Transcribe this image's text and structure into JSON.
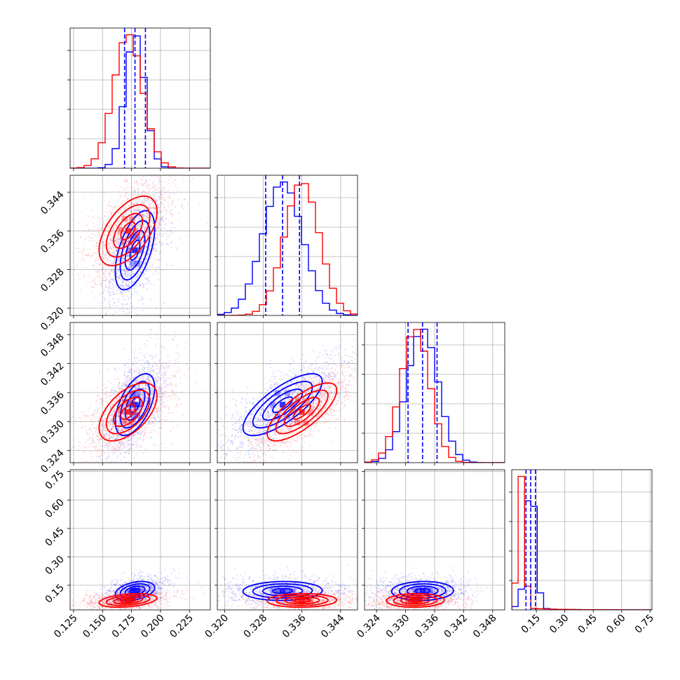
{
  "chart_data": {
    "type": "corner",
    "grid": true,
    "series": [
      {
        "name": "",
        "color": "#0000ff",
        "mean": [
          0.178,
          0.332,
          0.3335,
          0.12
        ],
        "std": [
          0.0085,
          0.0041,
          0.0032,
          0.025
        ]
      },
      {
        "name": "",
        "color": "#ff0000",
        "mean": [
          0.172,
          0.336,
          0.332,
          0.07
        ],
        "std": [
          0.0125,
          0.0036,
          0.003,
          0.018
        ]
      }
    ],
    "quantile_lines": {
      "color": "#0000ff",
      "values": [
        [
          0.169,
          0.178,
          0.187
        ],
        [
          0.3285,
          0.332,
          0.3355
        ],
        [
          0.3305,
          0.3335,
          0.3365
        ],
        [
          0.095,
          0.12,
          0.145
        ]
      ]
    },
    "parameters": [
      {
        "range": [
          0.122,
          0.243
        ],
        "ticks": [
          0.125,
          0.15,
          0.175,
          0.2,
          0.225
        ],
        "tick_labels": [
          "0.125",
          "0.150",
          "0.175",
          "0.200",
          "0.225"
        ]
      },
      {
        "range": [
          0.3185,
          0.3475
        ],
        "ticks": [
          0.32,
          0.328,
          0.336,
          0.344
        ],
        "tick_labels": [
          "0.320",
          "0.328",
          "0.336",
          "0.344"
        ]
      },
      {
        "range": [
          0.3215,
          0.3505
        ],
        "ticks": [
          0.324,
          0.33,
          0.336,
          0.342,
          0.348
        ],
        "tick_labels": [
          "0.324",
          "0.330",
          "0.336",
          "0.342",
          "0.348"
        ]
      },
      {
        "range": [
          0.02,
          0.76
        ],
        "ticks": [
          0.15,
          0.3,
          0.45,
          0.6,
          0.75
        ],
        "tick_labels": [
          "0.15",
          "0.30",
          "0.45",
          "0.60",
          "0.75"
        ]
      }
    ],
    "contour_levels_sigma": [
      0.5,
      1.0,
      1.5,
      2.0
    ]
  }
}
